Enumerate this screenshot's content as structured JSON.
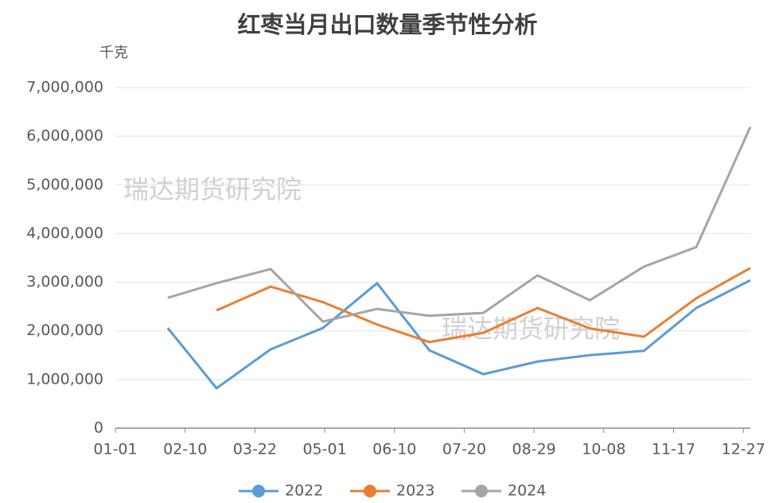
{
  "chart_data": {
    "type": "line",
    "title": "红枣当月出口数量季节性分析",
    "y_unit": "千克",
    "watermarks": [
      "瑞达期货研究院",
      "瑞达期货研究院"
    ],
    "x": [
      "01-31",
      "02-28",
      "03-31",
      "04-30",
      "05-31",
      "06-30",
      "07-31",
      "08-31",
      "09-30",
      "10-31",
      "11-30",
      "12-31"
    ],
    "xlim": [
      "01-01",
      "12-31"
    ],
    "xticks": [
      "01-01",
      "02-10",
      "03-22",
      "05-01",
      "06-10",
      "07-20",
      "08-29",
      "10-08",
      "11-17",
      "12-27"
    ],
    "ylim": [
      0,
      7000000
    ],
    "yticks": [
      0,
      {
        "value": 1000000,
        "label": "1,000,000"
      },
      {
        "value": 2000000,
        "label": "2,000,000"
      },
      {
        "value": 3000000,
        "label": "3,000,000"
      },
      {
        "value": 4000000,
        "label": "4,000,000"
      },
      {
        "value": 5000000,
        "label": "5,000,000"
      },
      {
        "value": 6000000,
        "label": "6,000,000"
      },
      {
        "value": 7000000,
        "label": "7,000,000"
      }
    ],
    "grid": true,
    "legend": "bottom",
    "series": [
      {
        "name": "2022",
        "color": "#5b9bd5",
        "values": [
          2060000,
          820000,
          1620000,
          2060000,
          2980000,
          1600000,
          1110000,
          1370000,
          1500000,
          1590000,
          2470000,
          3040000
        ]
      },
      {
        "name": "2023",
        "color": "#ed7d31",
        "values": [
          null,
          2420000,
          2910000,
          2590000,
          2130000,
          1770000,
          1960000,
          2470000,
          2050000,
          1880000,
          2670000,
          3290000
        ]
      },
      {
        "name": "2024",
        "color": "#a5a5a5",
        "values": [
          2680000,
          2980000,
          3270000,
          2190000,
          2450000,
          2310000,
          2370000,
          3140000,
          2630000,
          3320000,
          3720000,
          6190000
        ]
      }
    ]
  }
}
